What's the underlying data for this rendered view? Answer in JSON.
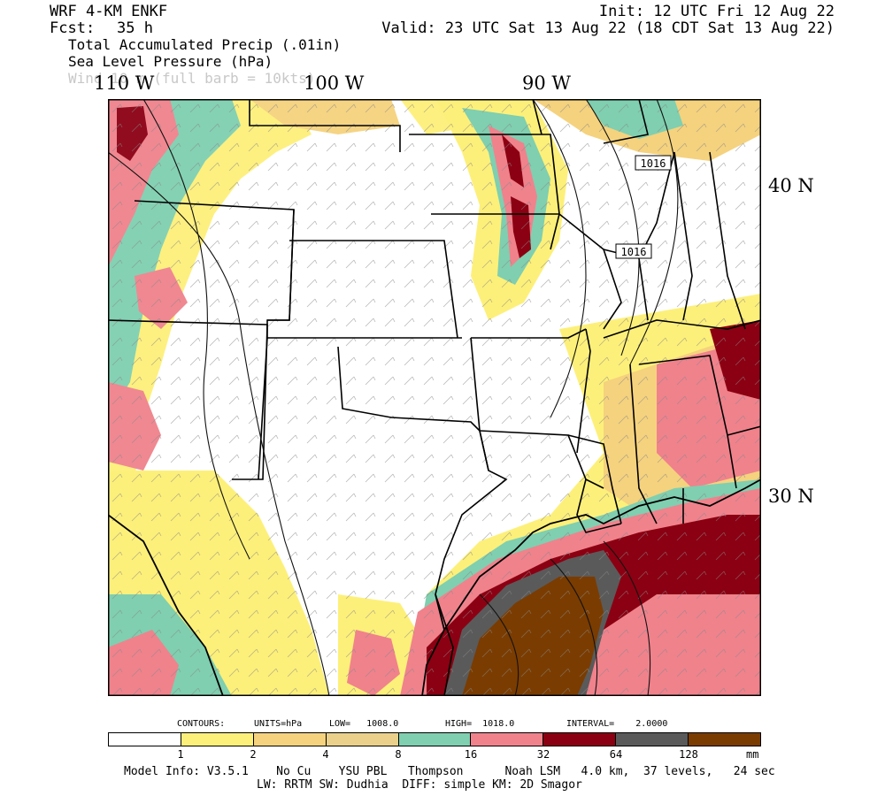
{
  "header": {
    "model": "WRF 4-KM ENKF",
    "init": "Init: 12 UTC Fri 12 Aug 22",
    "fcst_label": "Fcst:",
    "fcst_value": "35 h",
    "valid": "Valid: 23 UTC Sat 13 Aug 22 (18 CDT Sat 13 Aug 22)",
    "fields": [
      "Total Accumulated Precip (.01in)",
      "Sea Level Pressure (hPa)"
    ],
    "wind_field": "Wind 10 m (full barb = 10kts)"
  },
  "axes": {
    "longitudes": [
      "110 W",
      "100 W",
      "90 W"
    ],
    "latitudes": [
      "40 N",
      "30 N"
    ]
  },
  "isobar_labels": [
    "1016",
    "1016"
  ],
  "contours": {
    "heading": "CONTOURS:",
    "units": "UNITS=hPa",
    "low": "LOW=   1008.0",
    "high": "HIGH=  1018.0",
    "interval": "INTERVAL=    2.0000"
  },
  "legend": {
    "colors": [
      "#ffffff",
      "#fdf07a",
      "#f5d27e",
      "#ead08a",
      "#7fcfb0",
      "#f0828c",
      "#8b0012",
      "#5a5a5a",
      "#7a3c00"
    ],
    "ticks": [
      "1",
      "2",
      "4",
      "8",
      "16",
      "32",
      "64",
      "128"
    ],
    "unit": "mm"
  },
  "footer": {
    "line1": "Model Info: V3.5.1    No Cu    YSU PBL   Thompson      Noah LSM   4.0 km,  37 levels,   24 sec",
    "line2": "LW: RRTM SW: Dudhia  DIFF: simple KM: 2D Smagor"
  }
}
